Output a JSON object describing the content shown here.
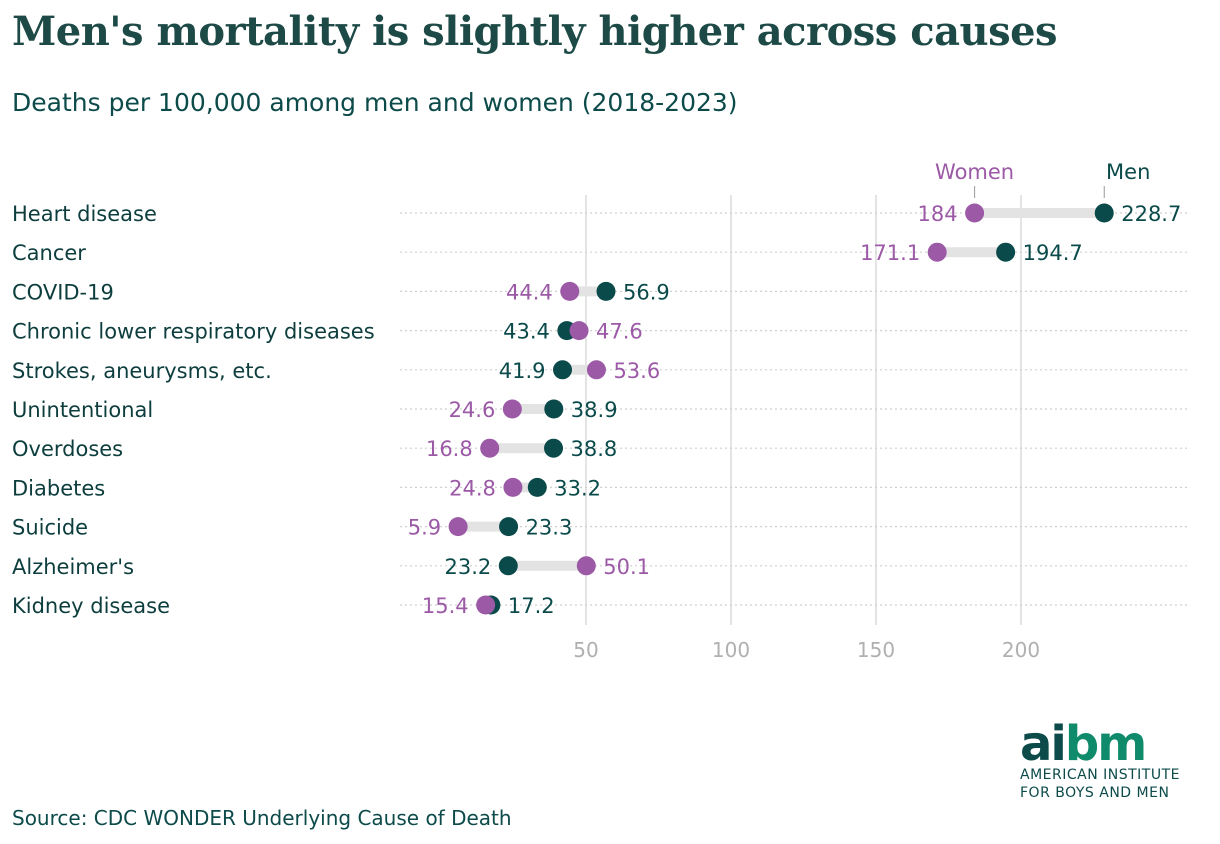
{
  "chart_data": {
    "type": "dumbbell",
    "title": "Men's mortality is slightly higher across causes",
    "subtitle": "Deaths per 100,000 among men and women (2018-2023)",
    "categories": [
      "Heart disease",
      "Cancer",
      "COVID-19",
      "Chronic lower respiratory diseases",
      "Strokes, aneurysms, etc.",
      "Unintentional",
      "Overdoses",
      "Diabetes",
      "Suicide",
      "Alzheimer's",
      "Kidney disease"
    ],
    "series": [
      {
        "name": "Women",
        "color": "#9b59a6",
        "values": [
          184,
          171.1,
          44.4,
          47.6,
          53.6,
          24.6,
          16.8,
          24.8,
          5.9,
          50.1,
          15.4
        ]
      },
      {
        "name": "Men",
        "color": "#0b4a4a",
        "values": [
          228.7,
          194.7,
          56.9,
          43.4,
          41.9,
          38.9,
          38.8,
          33.2,
          23.3,
          23.2,
          17.2
        ]
      }
    ],
    "x_ticks": [
      50,
      100,
      150,
      200
    ],
    "xlim": [
      0,
      250
    ],
    "grid": true,
    "legend": "top-right, labels on first row"
  },
  "source": "Source: CDC WONDER Underlying Cause of Death",
  "logo": {
    "word_a": "ai",
    "word_b": "bm",
    "line1": "AMERICAN INSTITUTE",
    "line2": "FOR BOYS AND MEN"
  }
}
